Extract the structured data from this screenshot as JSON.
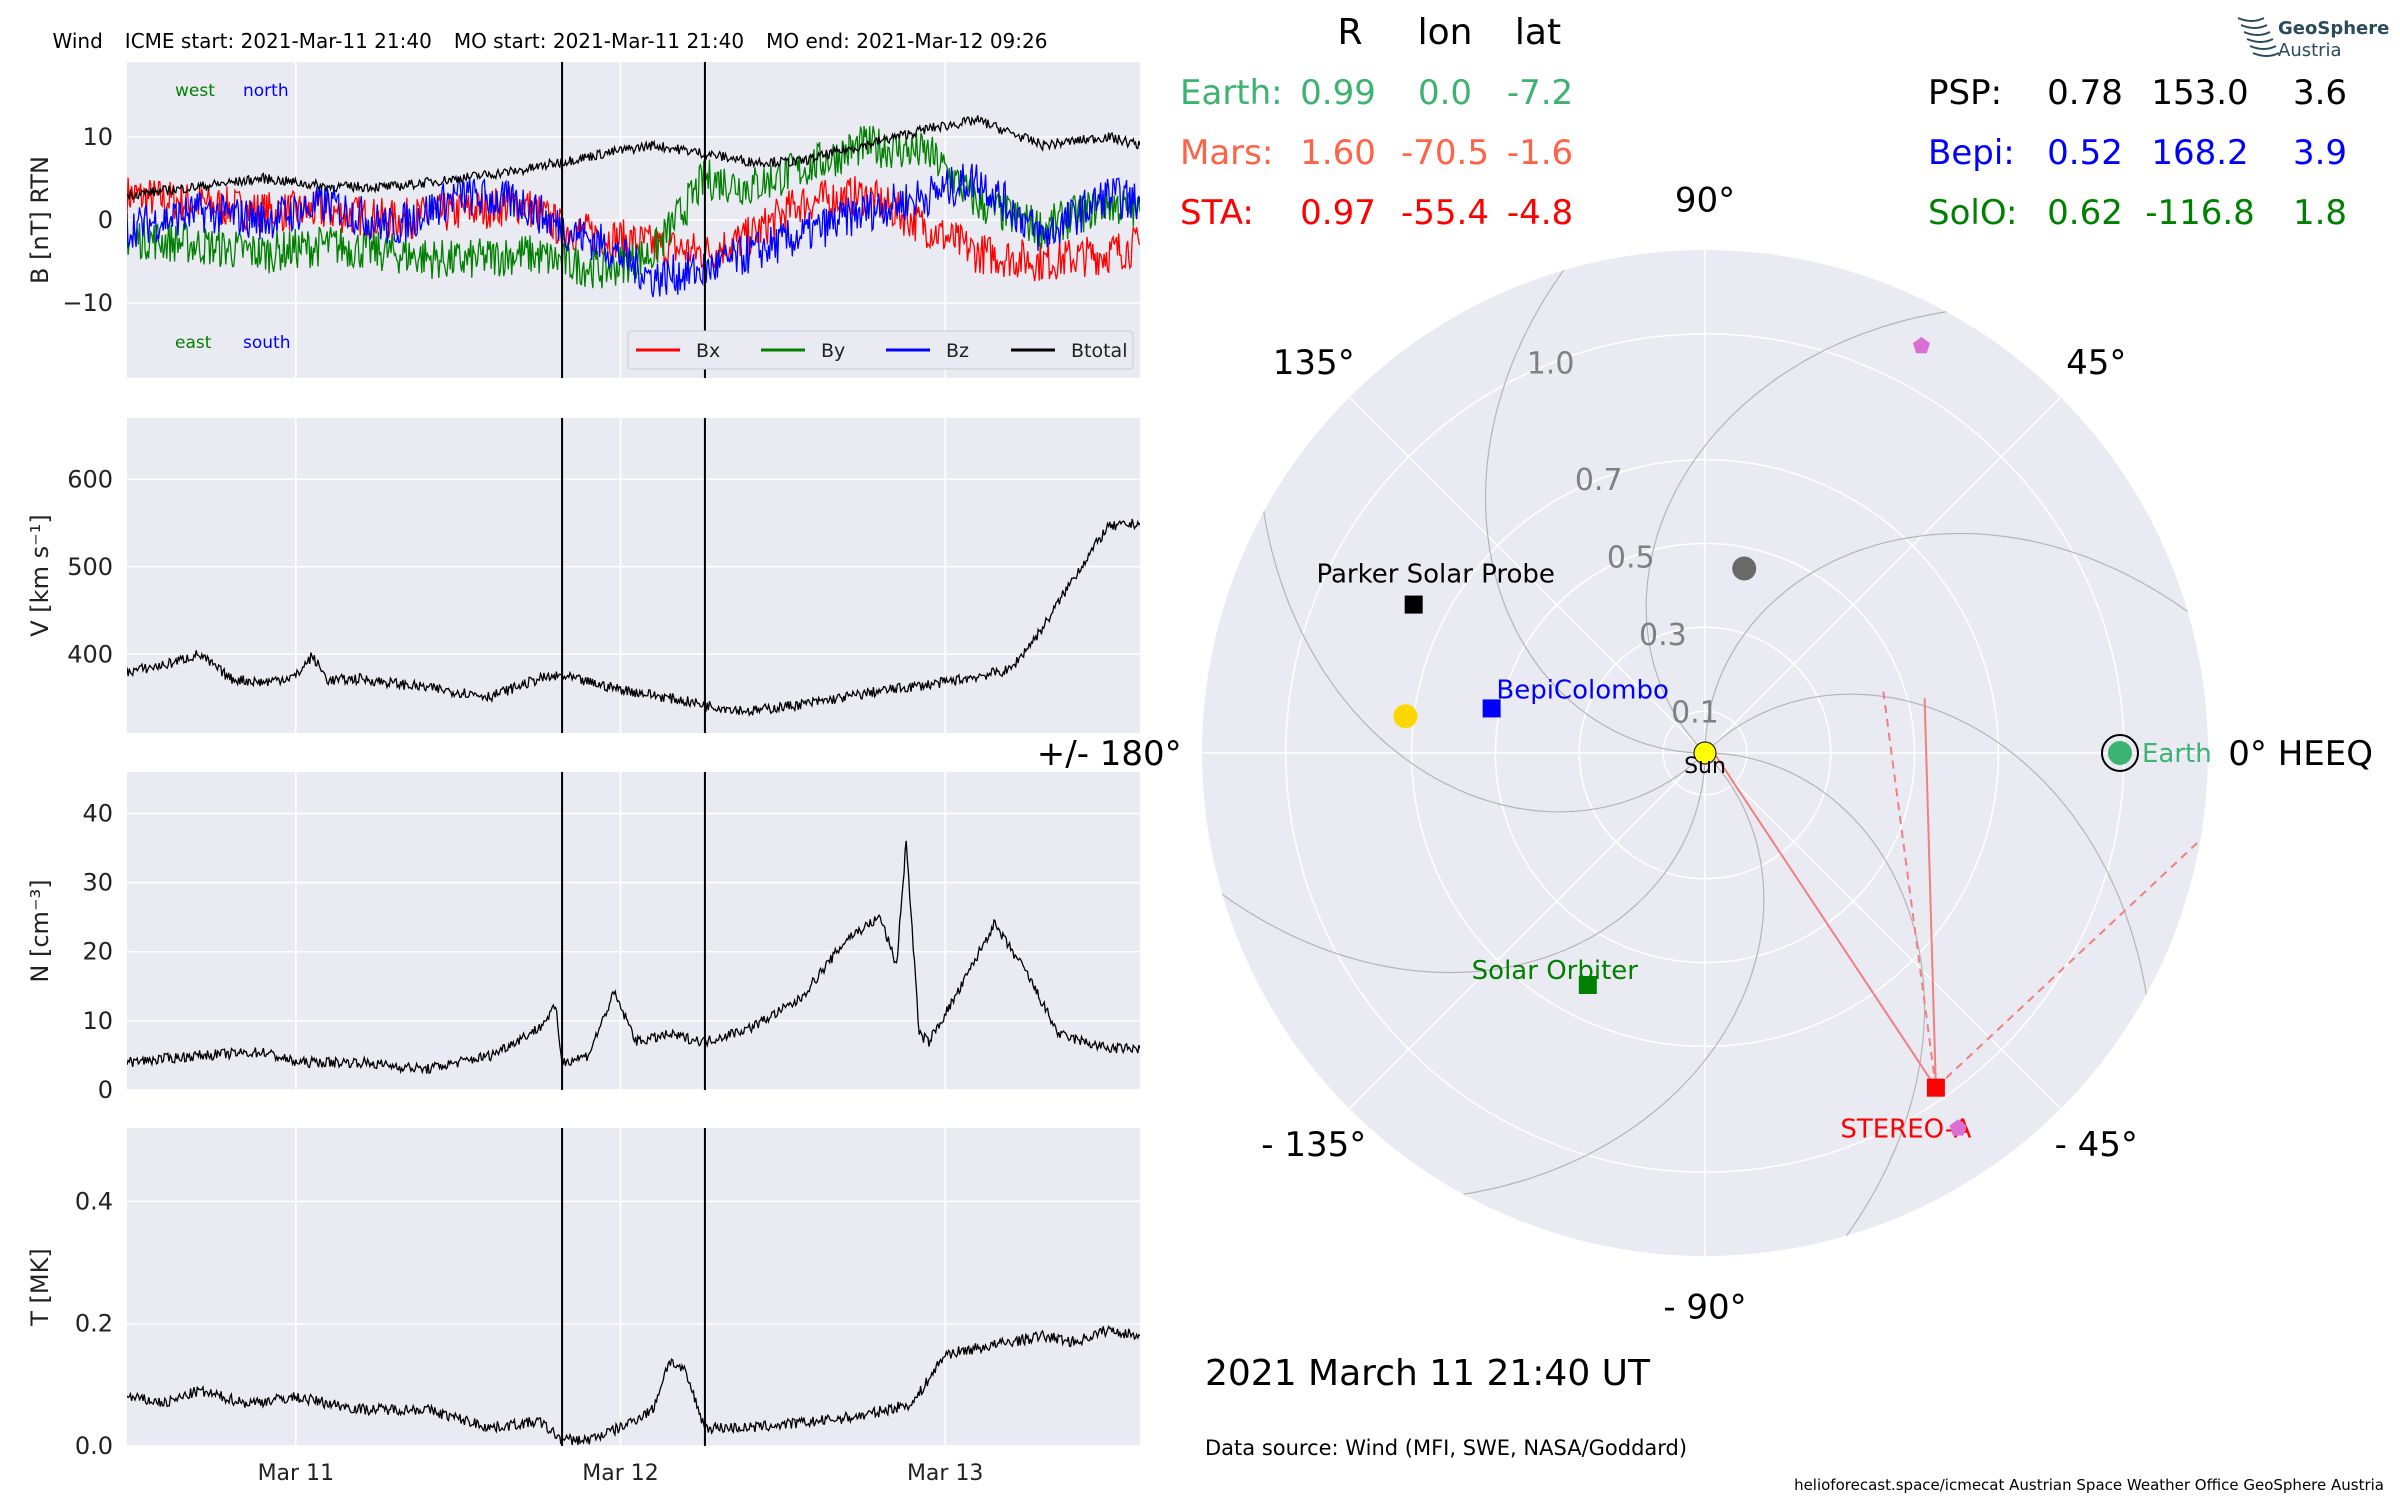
{
  "header": {
    "spacecraft": "Wind",
    "icme_start": "ICME start: 2021-Mar-11 21:40",
    "mo_start": "MO start: 2021-Mar-11 21:40",
    "mo_end": "MO end: 2021-Mar-12 09:26"
  },
  "chart_data": [
    {
      "type": "line",
      "id": "magnetic-field",
      "ylabel": "B [nT] RTN",
      "ylim": [
        -19,
        19
      ],
      "yticks": [
        -10,
        0,
        10
      ],
      "ytick_labels": [
        "−10",
        "0",
        "10"
      ],
      "xlim": [
        0.48,
        3.6
      ],
      "direction_labels": {
        "west": "west",
        "north": "north",
        "east": "east",
        "south": "south"
      },
      "legend_position": "lower-right",
      "event_lines": [
        1.82,
        2.26
      ],
      "series": [
        {
          "name": "Bx",
          "color": "#ff0000",
          "x": [
            0.48,
            0.7,
            0.9,
            1.1,
            1.3,
            1.5,
            1.7,
            1.82,
            1.95,
            2.1,
            2.26,
            2.4,
            2.55,
            2.75,
            2.95,
            3.1,
            3.3,
            3.5,
            3.6
          ],
          "y": [
            3,
            2,
            1,
            1,
            0,
            1,
            2,
            -1,
            -2,
            -3,
            -4,
            -2,
            2,
            3,
            -1,
            -4,
            -5,
            -4,
            -3
          ]
        },
        {
          "name": "By",
          "color": "#008000",
          "x": [
            0.48,
            0.7,
            0.9,
            1.1,
            1.3,
            1.5,
            1.7,
            1.82,
            1.95,
            2.1,
            2.26,
            2.4,
            2.55,
            2.75,
            2.95,
            3.1,
            3.3,
            3.5,
            3.6
          ],
          "y": [
            -2,
            -3,
            -4,
            -3,
            -4,
            -5,
            -4,
            -5,
            -6,
            -4,
            5,
            4,
            6,
            9,
            8,
            2,
            -1,
            2,
            1
          ]
        },
        {
          "name": "Bz",
          "color": "#0000ff",
          "x": [
            0.48,
            0.7,
            0.9,
            1.1,
            1.3,
            1.5,
            1.7,
            1.82,
            1.95,
            2.1,
            2.26,
            2.4,
            2.55,
            2.75,
            2.95,
            3.1,
            3.3,
            3.5,
            3.6
          ],
          "y": [
            -1,
            1,
            0,
            2,
            -1,
            3,
            2,
            -1,
            -3,
            -7,
            -6,
            -4,
            -2,
            1,
            3,
            5,
            -2,
            3,
            2
          ]
        },
        {
          "name": "Btotal",
          "color": "#000000",
          "x": [
            0.48,
            0.7,
            0.9,
            1.1,
            1.3,
            1.5,
            1.7,
            1.82,
            1.95,
            2.1,
            2.26,
            2.4,
            2.55,
            2.75,
            2.95,
            3.1,
            3.3,
            3.5,
            3.6
          ],
          "y": [
            3,
            4,
            5,
            4,
            4,
            5,
            6,
            7,
            8,
            9,
            8,
            7,
            7,
            9,
            11,
            12,
            9,
            10,
            9
          ]
        }
      ]
    },
    {
      "type": "line",
      "id": "velocity",
      "ylabel": "V [km s⁻¹]",
      "ylim": [
        310,
        670
      ],
      "yticks": [
        400,
        500,
        600
      ],
      "ytick_labels": [
        "400",
        "500",
        "600"
      ],
      "xlim": [
        0.48,
        3.6
      ],
      "event_lines": [
        1.82,
        2.26
      ],
      "series": [
        {
          "name": "",
          "color": "#000000",
          "x": [
            0.48,
            0.6,
            0.7,
            0.8,
            0.9,
            1.0,
            1.05,
            1.1,
            1.2,
            1.4,
            1.6,
            1.75,
            1.82,
            1.9,
            2.0,
            2.15,
            2.26,
            2.4,
            2.6,
            2.8,
            3.0,
            3.2,
            3.3,
            3.4,
            3.5,
            3.6
          ],
          "y": [
            380,
            388,
            400,
            372,
            368,
            375,
            398,
            370,
            372,
            362,
            352,
            372,
            375,
            368,
            360,
            350,
            342,
            335,
            345,
            358,
            368,
            382,
            430,
            490,
            545,
            550
          ]
        }
      ]
    },
    {
      "type": "line",
      "id": "density",
      "ylabel": "N [cm⁻³]",
      "ylim": [
        0,
        46
      ],
      "yticks": [
        0,
        10,
        20,
        30,
        40
      ],
      "ytick_labels": [
        "0",
        "10",
        "20",
        "30",
        "40"
      ],
      "xlim": [
        0.48,
        3.6
      ],
      "event_lines": [
        1.82,
        2.26
      ],
      "series": [
        {
          "name": "",
          "color": "#000000",
          "x": [
            0.48,
            0.7,
            0.9,
            1.0,
            1.2,
            1.4,
            1.6,
            1.75,
            1.8,
            1.82,
            1.9,
            1.98,
            2.05,
            2.15,
            2.26,
            2.4,
            2.55,
            2.7,
            2.8,
            2.85,
            2.88,
            2.92,
            2.95,
            3.05,
            3.15,
            3.25,
            3.35,
            3.5,
            3.6
          ],
          "y": [
            4,
            5,
            5.5,
            4,
            4,
            3,
            5,
            9,
            12,
            4,
            5,
            14,
            7,
            8,
            7,
            9,
            13,
            22,
            25,
            18,
            36,
            8,
            7,
            15,
            24,
            17,
            8,
            6,
            6
          ]
        }
      ]
    },
    {
      "type": "line",
      "id": "temperature",
      "ylabel": "T [MK]",
      "ylim": [
        0,
        0.52
      ],
      "yticks": [
        0,
        0.2,
        0.4
      ],
      "ytick_labels": [
        "0.0",
        "0.2",
        "0.4"
      ],
      "xlim": [
        0.48,
        3.6
      ],
      "xticks": [
        1.0,
        2.0,
        3.0
      ],
      "xtick_labels": [
        "Mar 11",
        "Mar 12",
        "Mar 13"
      ],
      "event_lines": [
        1.82,
        2.26
      ],
      "series": [
        {
          "name": "",
          "color": "#000000",
          "x": [
            0.48,
            0.6,
            0.7,
            0.85,
            1.0,
            1.2,
            1.4,
            1.6,
            1.75,
            1.82,
            1.9,
            2.0,
            2.1,
            2.15,
            2.2,
            2.26,
            2.4,
            2.6,
            2.75,
            2.9,
            3.0,
            3.1,
            3.2,
            3.3,
            3.4,
            3.5,
            3.6
          ],
          "y": [
            0.08,
            0.07,
            0.09,
            0.07,
            0.08,
            0.06,
            0.06,
            0.03,
            0.04,
            0.01,
            0.01,
            0.03,
            0.06,
            0.14,
            0.12,
            0.03,
            0.03,
            0.04,
            0.05,
            0.07,
            0.15,
            0.16,
            0.17,
            0.18,
            0.17,
            0.19,
            0.18
          ]
        }
      ]
    },
    {
      "type": "scatter",
      "id": "heliospheric-position",
      "projection": "polar",
      "rlim": [
        0,
        1.2
      ],
      "r_tick_labels": [
        {
          "r": 0.1,
          "label": "0.1"
        },
        {
          "r": 0.3,
          "label": "0.3"
        },
        {
          "r": 0.5,
          "label": "0.5"
        },
        {
          "r": 0.7,
          "label": "0.7"
        },
        {
          "r": 1.0,
          "label": "1.0"
        }
      ],
      "angle_labels": [
        {
          "deg": 0,
          "label": "0° HEEQ"
        },
        {
          "deg": 45,
          "label": "45°"
        },
        {
          "deg": 90,
          "label": "90°"
        },
        {
          "deg": 135,
          "label": "135°"
        },
        {
          "deg": 180,
          "label": "+/- 180°"
        },
        {
          "deg": -135,
          "label": "- 135°"
        },
        {
          "deg": -90,
          "label": "- 90°"
        },
        {
          "deg": -45,
          "label": "- 45°"
        }
      ],
      "objects": [
        {
          "name": "Sun",
          "label": "Sun",
          "r": 0,
          "lon": 0,
          "marker": "circle",
          "color": "#ffff00",
          "label_color": "#000000"
        },
        {
          "name": "Earth",
          "label": "Earth",
          "r": 0.99,
          "lon": 0.0,
          "marker": "circle-ringed",
          "color": "#3cb371",
          "label_color": "#3cb371"
        },
        {
          "name": "STEREO-A",
          "label": "STEREO-A",
          "r": 0.97,
          "lon": -55.4,
          "marker": "square",
          "color": "#ff0000",
          "label_color": "#ff0000"
        },
        {
          "name": "Parker Solar Probe",
          "label": "Parker Solar Probe",
          "r": 0.78,
          "lon": 153.0,
          "marker": "square",
          "color": "#000000",
          "label_color": "#000000"
        },
        {
          "name": "BepiColombo",
          "label": "BepiColombo",
          "r": 0.52,
          "lon": 168.2,
          "marker": "square",
          "color": "#0000ff",
          "label_color": "#0000ff"
        },
        {
          "name": "Solar Orbiter",
          "label": "Solar Orbiter",
          "r": 0.62,
          "lon": -116.8,
          "marker": "square",
          "color": "#008000",
          "label_color": "#008000"
        },
        {
          "name": "Mercury",
          "label": "",
          "r": 0.72,
          "lon": 173,
          "marker": "circle",
          "color": "#ffd700"
        },
        {
          "name": "Venus",
          "label": "",
          "r": 0.45,
          "lon": 78,
          "marker": "circle",
          "color": "#696969"
        },
        {
          "name": "Mars",
          "label": "",
          "r": 1.6,
          "lon": -70.5,
          "marker": "circle",
          "color": "#ff6347",
          "visible": false
        },
        {
          "name": "Jupiter-marker",
          "label": "",
          "r": 1.1,
          "lon": 62,
          "marker": "pentagon",
          "color": "#da70d6"
        },
        {
          "name": "Saturn-marker",
          "label": "",
          "r": 1.08,
          "lon": -56,
          "marker": "pentagon",
          "color": "#da70d6"
        }
      ]
    }
  ],
  "positions_table": {
    "headers": [
      "R",
      "lon",
      "lat"
    ],
    "left_rows": [
      {
        "name": "Earth:",
        "R": "0.99",
        "lon": "0.0",
        "lat": "-7.2",
        "color": "#3cb371"
      },
      {
        "name": "Mars:",
        "R": "1.60",
        "lon": "-70.5",
        "lat": "-1.6",
        "color": "#ff6347"
      },
      {
        "name": "STA:",
        "R": "0.97",
        "lon": "-55.4",
        "lat": "-4.8",
        "color": "#ff0000"
      }
    ],
    "right_rows": [
      {
        "name": "PSP:",
        "R": "0.78",
        "lon": "153.0",
        "lat": "3.6",
        "color": "#000000"
      },
      {
        "name": "Bepi:",
        "R": "0.52",
        "lon": "168.2",
        "lat": "3.9",
        "color": "#0000ff"
      },
      {
        "name": "SolO:",
        "R": "0.62",
        "lon": "-116.8",
        "lat": "1.8",
        "color": "#008000"
      }
    ]
  },
  "logo": {
    "line1": "GeoSphere",
    "line2": "Austria"
  },
  "timestamp": "2021 March 11  21:40 UT",
  "data_source": "Data source: Wind (MFI, SWE, NASA/Goddard)",
  "footer": "helioforecast.space/icmecat   Austrian Space Weather Office   GeoSphere Austria"
}
